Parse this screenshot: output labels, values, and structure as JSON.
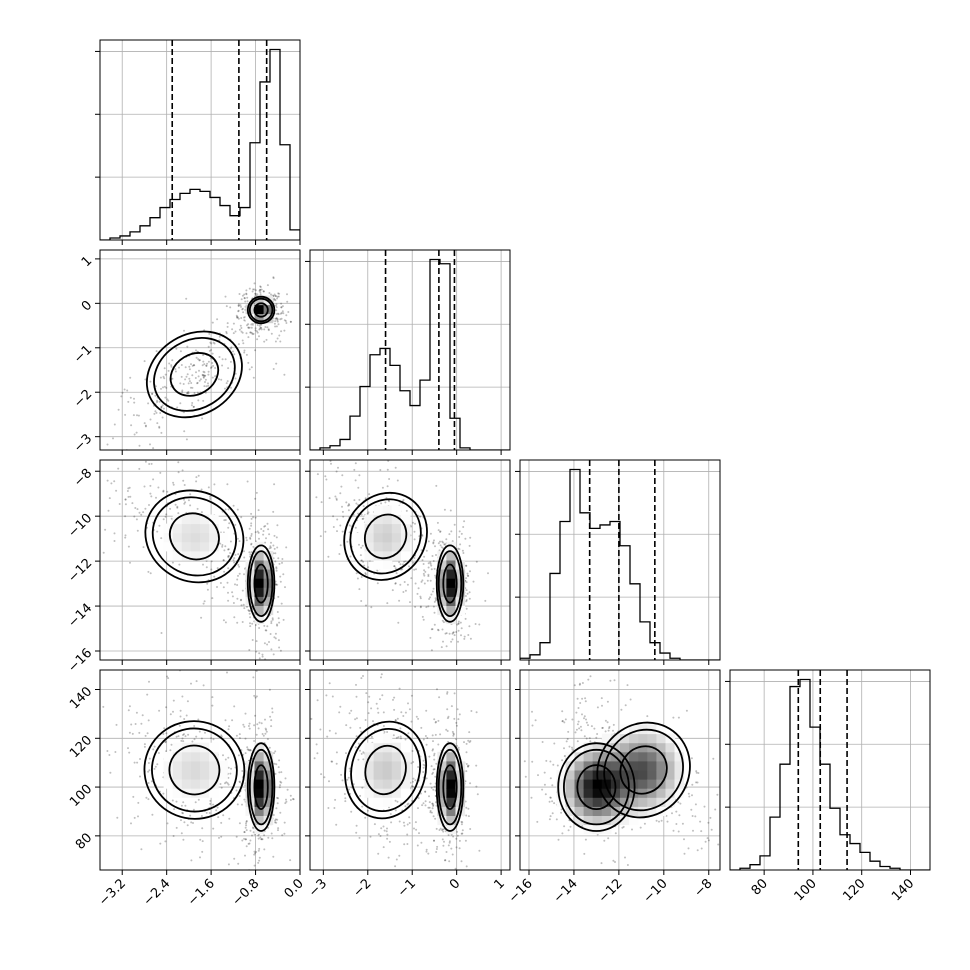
{
  "chart_data": {
    "type": "corner",
    "variables": [
      {
        "range": [
          -3.6,
          0.0
        ],
        "ticks": [
          -3.2,
          -2.4,
          -1.6,
          -0.8,
          0.0
        ],
        "tick_labels": [
          "−3.2",
          "−2.4",
          "−1.6",
          "−0.8",
          "0.0"
        ]
      },
      {
        "range": [
          -3.3,
          1.2
        ],
        "ticks": [
          -3,
          -2,
          -1,
          0,
          1
        ],
        "tick_labels": [
          "−3",
          "−2",
          "−1",
          "0",
          "1"
        ]
      },
      {
        "range": [
          -16.4,
          -7.5
        ],
        "ticks": [
          -16,
          -14,
          -12,
          -10,
          -8
        ],
        "tick_labels": [
          "−16",
          "−14",
          "−12",
          "−10",
          "−8"
        ]
      },
      {
        "range": [
          66,
          148
        ],
        "ticks": [
          80,
          100,
          120,
          140
        ],
        "tick_labels": [
          "80",
          "100",
          "120",
          "140"
        ]
      }
    ],
    "quantiles": [
      [
        -2.3,
        -1.1,
        -0.6
      ],
      [
        -1.6,
        -0.4,
        -0.05
      ],
      [
        -13.3,
        -12.0,
        -10.4
      ],
      [
        94,
        103,
        114
      ]
    ],
    "histograms": [
      {
        "edges_start": -3.6,
        "bin_width": 0.18,
        "counts": [
          0,
          1,
          2,
          4,
          7,
          11,
          16,
          20,
          23,
          25,
          24,
          21,
          17,
          12,
          16,
          48,
          78,
          94,
          47,
          5,
          0
        ]
      },
      {
        "edges_start": -3.3,
        "bin_width": 0.225,
        "counts": [
          0,
          1,
          2,
          5,
          16,
          30,
          45,
          48,
          40,
          28,
          21,
          33,
          90,
          88,
          15,
          1,
          0,
          0,
          0,
          0
        ]
      },
      {
        "edges_start": -16.4,
        "bin_width": 0.445,
        "counts": [
          1,
          3,
          10,
          50,
          80,
          110,
          85,
          76,
          78,
          80,
          66,
          44,
          22,
          10,
          4,
          1,
          0,
          0,
          0,
          0
        ]
      },
      {
        "edges_start": 66,
        "bin_width": 4.1,
        "counts": [
          0,
          1,
          3,
          8,
          30,
          60,
          104,
          108,
          81,
          60,
          35,
          20,
          15,
          10,
          5,
          2,
          1,
          0,
          0,
          0
        ]
      }
    ],
    "modes": [
      {
        "weight": 0.5,
        "mean": [
          -1.9,
          -1.6,
          -10.9,
          107
        ],
        "sd": [
          0.45,
          0.45,
          1.0,
          10
        ]
      },
      {
        "weight": 0.5,
        "mean": [
          -0.7,
          -0.15,
          -13.0,
          100
        ],
        "sd": [
          0.12,
          0.15,
          0.85,
          9
        ]
      }
    ],
    "contour_levels": [
      0.39,
      0.86,
      1.0
    ],
    "grid": true
  }
}
